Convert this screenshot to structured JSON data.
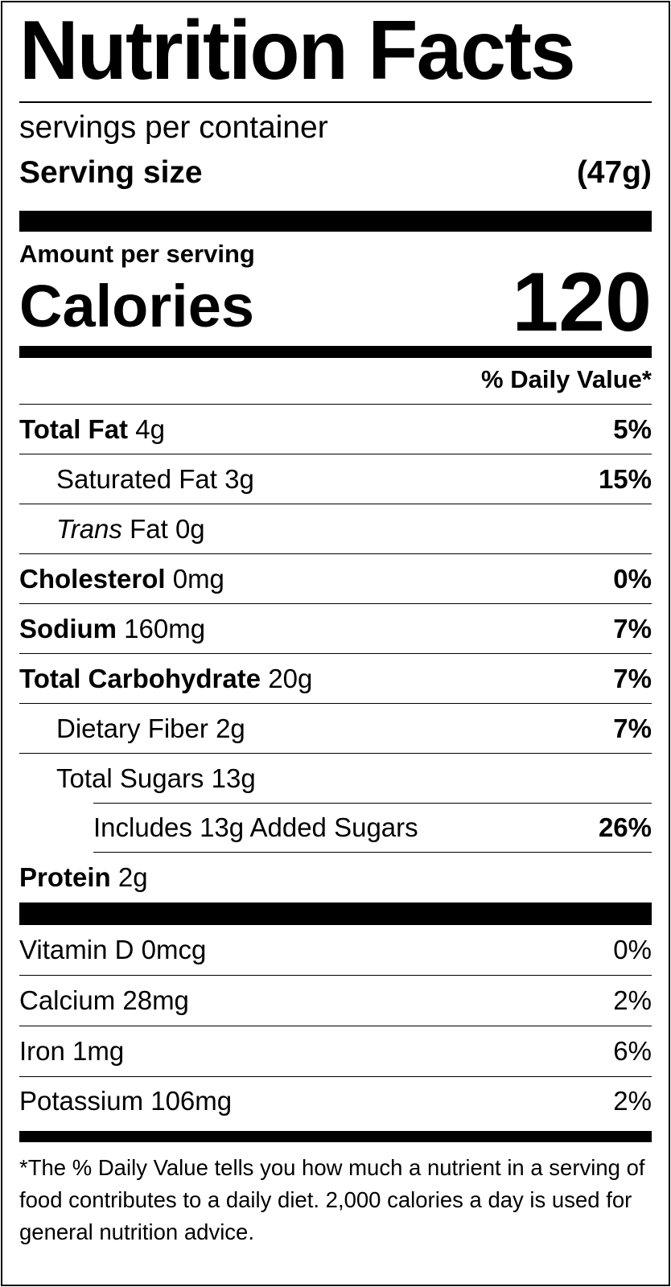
{
  "title": "Nutrition Facts",
  "servings_per_container": "servings per container",
  "serving_size": {
    "label": "Serving size",
    "value": "(47g)"
  },
  "amount_per_serving": "Amount per serving",
  "calories": {
    "label": "Calories",
    "value": "120"
  },
  "daily_value_header": "% Daily Value*",
  "nutrients": [
    {
      "name": "Total Fat",
      "amount": "4g",
      "dv": "5%"
    },
    {
      "name": "Saturated Fat",
      "amount": "3g",
      "dv": "15%"
    },
    {
      "name_italic": "Trans",
      "name": "Fat",
      "amount": "0g"
    },
    {
      "name": "Cholesterol",
      "amount": "0mg",
      "dv": "0%"
    },
    {
      "name": "Sodium",
      "amount": "160mg",
      "dv": "7%"
    },
    {
      "name": "Total Carbohydrate",
      "amount": "20g",
      "dv": "7%"
    },
    {
      "name": "Dietary Fiber",
      "amount": "2g",
      "dv": "7%"
    },
    {
      "name": "Total Sugars",
      "amount": "13g"
    },
    {
      "name": "Includes 13g Added Sugars",
      "dv": "26%"
    },
    {
      "name": "Protein",
      "amount": "2g"
    }
  ],
  "micronutrients": [
    {
      "label": "Vitamin D 0mcg",
      "dv": "0%"
    },
    {
      "label": "Calcium 28mg",
      "dv": "2%"
    },
    {
      "label": "Iron 1mg",
      "dv": "6%"
    },
    {
      "label": "Potassium 106mg",
      "dv": "2%"
    }
  ],
  "footnote": "*The % Daily Value tells you how much a nutrient in a serving of food contributes to a daily diet. 2,000 calories a day is used for general nutrition advice."
}
